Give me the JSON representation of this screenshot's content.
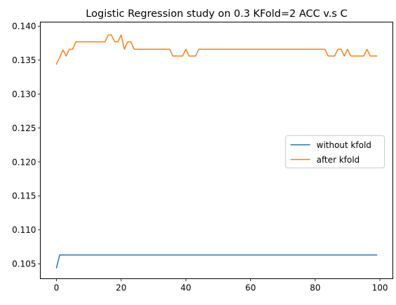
{
  "chart_data": {
    "type": "line",
    "title": "Logistic Regression study on 0.3 KFold=2 ACC v.s C",
    "xlabel": "",
    "ylabel": "",
    "xlim": [
      -5,
      104
    ],
    "ylim": [
      0.1028,
      0.1406
    ],
    "x_ticks": [
      0,
      20,
      40,
      60,
      80,
      100
    ],
    "y_ticks": [
      0.105,
      0.11,
      0.115,
      0.12,
      0.125,
      0.13,
      0.135,
      0.14
    ],
    "y_tick_labels": [
      "0.105",
      "0.110",
      "0.115",
      "0.120",
      "0.125",
      "0.130",
      "0.135",
      "0.140"
    ],
    "grid": false,
    "legend_position": "center-right",
    "series": [
      {
        "name": "without kfold",
        "color": "#1f77b4",
        "points": [
          [
            0,
            0.1044
          ],
          [
            1,
            0.1063
          ],
          [
            99,
            0.1063
          ]
        ]
      },
      {
        "name": "after kfold",
        "color": "#ff7f0e",
        "points": [
          [
            0,
            0.1344
          ],
          [
            1,
            0.1354
          ],
          [
            2,
            0.1365
          ],
          [
            3,
            0.1356
          ],
          [
            4,
            0.1366
          ],
          [
            5,
            0.1366
          ],
          [
            6,
            0.1377
          ],
          [
            15,
            0.1377
          ],
          [
            16,
            0.1387
          ],
          [
            17,
            0.1387
          ],
          [
            18,
            0.1377
          ],
          [
            19,
            0.1377
          ],
          [
            20,
            0.1387
          ],
          [
            21,
            0.1366
          ],
          [
            22,
            0.1377
          ],
          [
            23,
            0.1377
          ],
          [
            24,
            0.1366
          ],
          [
            35,
            0.1366
          ],
          [
            36,
            0.1356
          ],
          [
            39,
            0.1356
          ],
          [
            40,
            0.1366
          ],
          [
            41,
            0.1356
          ],
          [
            43,
            0.1356
          ],
          [
            44,
            0.1366
          ],
          [
            83,
            0.1366
          ],
          [
            84,
            0.1356
          ],
          [
            86,
            0.1356
          ],
          [
            87,
            0.1366
          ],
          [
            88,
            0.1366
          ],
          [
            89,
            0.1356
          ],
          [
            90,
            0.1366
          ],
          [
            91,
            0.1356
          ],
          [
            95,
            0.1356
          ],
          [
            96,
            0.1366
          ],
          [
            97,
            0.1356
          ],
          [
            99,
            0.1356
          ]
        ]
      }
    ]
  }
}
